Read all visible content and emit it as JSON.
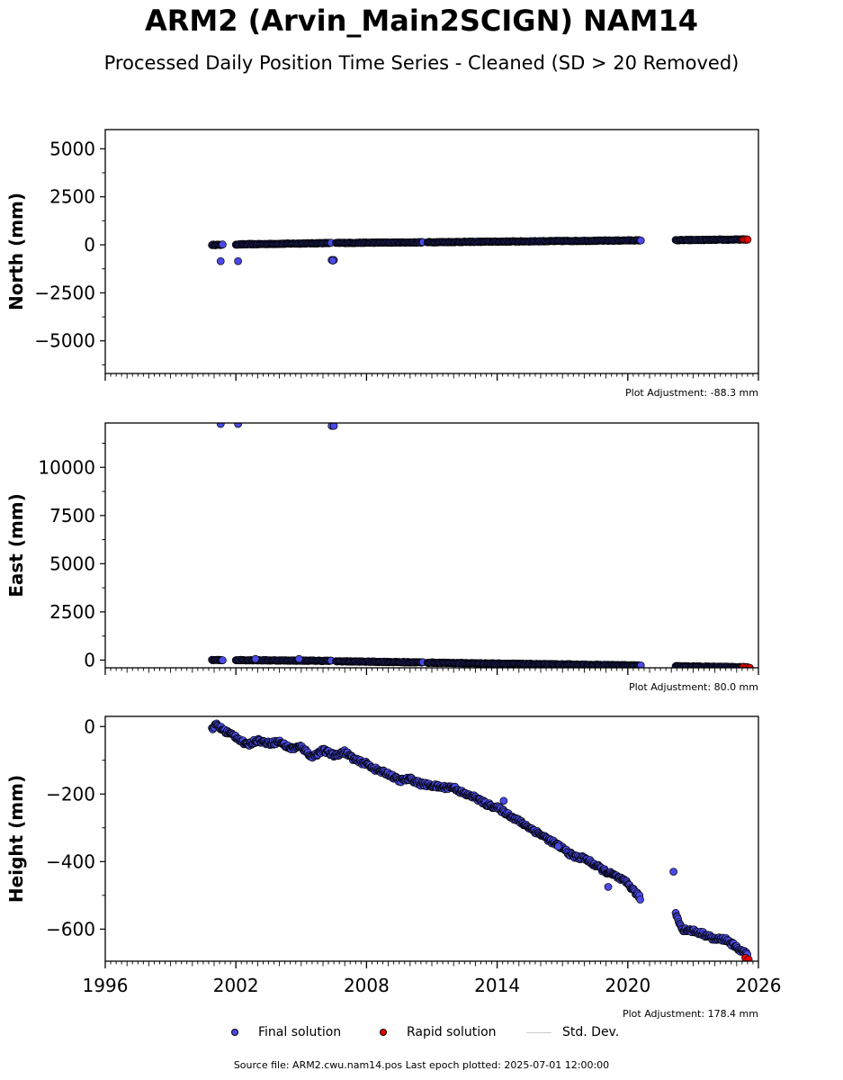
{
  "page": {
    "title": "ARM2 (Arvin_Main2SCIGN) NAM14",
    "subtitle": "Processed Daily Position Time Series - Cleaned (SD > 20 Removed)",
    "source_label": "Source file: ARM2.cwu.nam14.pos  Last epoch plotted: 2025-07-01 12:00:00"
  },
  "legend": {
    "final": "Final solution",
    "rapid": "Rapid solution",
    "std": "Std. Dev."
  },
  "colors": {
    "final": "#4a4ae6",
    "rapid": "#e60000",
    "std": "#cccccc",
    "edge": "#000000"
  },
  "chart_data": [
    {
      "type": "scatter",
      "ylabel": "North (mm)",
      "adjustment": "Plot Adjustment: -88.3 mm",
      "xlim": [
        1996,
        2026
      ],
      "ylim": [
        -6700,
        6000
      ],
      "yticks": [
        5000,
        2500,
        0,
        -2500,
        -5000
      ],
      "ytick_labels": [
        "5000",
        "2500",
        "0",
        "−2500",
        "−5000"
      ],
      "x_tick_labels_shown": false,
      "series": [
        {
          "kind": "final",
          "segments": [
            {
              "x": [
                2000.9,
                2001.4
              ],
              "y": [
                0,
                0
              ]
            },
            {
              "x": [
                2002.0,
                2006.4
              ],
              "y": [
                20,
                95
              ]
            },
            {
              "x": [
                2006.6,
                2010.6
              ],
              "y": [
                100,
                130
              ]
            },
            {
              "x": [
                2010.8,
                2020.6
              ],
              "y": [
                135,
                235
              ]
            },
            {
              "x": [
                2022.2,
                2025.5
              ],
              "y": [
                240,
                280
              ]
            }
          ],
          "outliers": [
            {
              "x": 2001.3,
              "y": -850
            },
            {
              "x": 2002.1,
              "y": -850
            },
            {
              "x": 2006.4,
              "y": -790
            },
            {
              "x": 2006.5,
              "y": -790
            },
            {
              "x": 2006.45,
              "y": -820
            }
          ]
        },
        {
          "kind": "rapid",
          "points": [
            {
              "x": 2025.3,
              "y": 270
            },
            {
              "x": 2025.4,
              "y": 270
            },
            {
              "x": 2025.5,
              "y": 275
            }
          ]
        }
      ]
    },
    {
      "type": "scatter",
      "ylabel": "East (mm)",
      "adjustment": "Plot Adjustment: 80.0 mm",
      "xlim": [
        1996,
        2026
      ],
      "ylim": [
        -400,
        12300
      ],
      "yticks": [
        10000,
        7500,
        5000,
        2500,
        0
      ],
      "ytick_labels": [
        "10000",
        "7500",
        "5000",
        "2500",
        "0"
      ],
      "x_tick_labels_shown": false,
      "series": [
        {
          "kind": "final",
          "segments": [
            {
              "x": [
                2000.9,
                2001.4
              ],
              "y": [
                0,
                0
              ]
            },
            {
              "x": [
                2002.0,
                2006.4
              ],
              "y": [
                0,
                -40
              ]
            },
            {
              "x": [
                2006.6,
                2010.6
              ],
              "y": [
                -60,
                -120
              ]
            },
            {
              "x": [
                2010.8,
                2020.6
              ],
              "y": [
                -130,
                -280
              ]
            },
            {
              "x": [
                2022.2,
                2025.5
              ],
              "y": [
                -320,
                -370
              ]
            }
          ],
          "outliers": [
            {
              "x": 2001.3,
              "y": 12250
            },
            {
              "x": 2002.1,
              "y": 12250
            },
            {
              "x": 2006.4,
              "y": 12150
            },
            {
              "x": 2006.5,
              "y": 12150
            },
            {
              "x": 2002.9,
              "y": 60
            },
            {
              "x": 2004.9,
              "y": 60
            }
          ]
        },
        {
          "kind": "rapid",
          "points": [
            {
              "x": 2025.3,
              "y": -360
            },
            {
              "x": 2025.45,
              "y": -380
            },
            {
              "x": 2025.6,
              "y": -400
            }
          ]
        }
      ]
    },
    {
      "type": "scatter",
      "ylabel": "Height (mm)",
      "adjustment": "Plot Adjustment: 178.4 mm",
      "xlim": [
        1996,
        2026
      ],
      "ylim": [
        -695,
        30
      ],
      "yticks": [
        0,
        -200,
        -400,
        -600
      ],
      "ytick_labels": [
        "0",
        "−200",
        "−400",
        "−600"
      ],
      "xticks": [
        1996,
        2002,
        2008,
        2014,
        2020,
        2026
      ],
      "xtick_labels": [
        "1996",
        "2002",
        "2008",
        "2014",
        "2020",
        "2026"
      ],
      "x_tick_labels_shown": true,
      "series": [
        {
          "kind": "final",
          "segments": [
            {
              "x": [
                2000.9,
                2001.1,
                2001.4,
                2002.0,
                2002.5,
                2003.0,
                2003.5,
                2004.0,
                2004.5,
                2005.0,
                2005.5,
                2006.0,
                2006.5,
                2007.0,
                2007.5,
                2008.0,
                2008.5,
                2009.0,
                2009.5,
                2010.0,
                2010.5,
                2011.0,
                2011.5,
                2012.0,
                2012.5,
                2013.0,
                2013.5,
                2014.0,
                2014.5,
                2015.0,
                2015.5,
                2016.0,
                2016.5,
                2017.0,
                2017.5,
                2018.0,
                2018.5,
                2019.0,
                2019.5,
                2020.0,
                2020.6
              ],
              "y": [
                -5,
                5,
                -10,
                -30,
                -55,
                -40,
                -50,
                -45,
                -65,
                -60,
                -90,
                -70,
                -85,
                -75,
                -100,
                -110,
                -130,
                -140,
                -160,
                -155,
                -170,
                -175,
                -180,
                -180,
                -200,
                -210,
                -230,
                -240,
                -260,
                -280,
                -300,
                -320,
                -340,
                -360,
                -385,
                -390,
                -410,
                -430,
                -445,
                -465,
                -510
              ]
            },
            {
              "x": [
                2022.2,
                2022.5,
                2023.0,
                2023.5,
                2024.0,
                2024.5,
                2025.0,
                2025.5
              ],
              "y": [
                -555,
                -600,
                -605,
                -615,
                -630,
                -630,
                -655,
                -675
              ]
            }
          ],
          "outliers": [
            {
              "x": 2022.1,
              "y": -430
            },
            {
              "x": 2019.1,
              "y": -475
            },
            {
              "x": 2016.8,
              "y": -355
            },
            {
              "x": 2014.3,
              "y": -220
            }
          ]
        },
        {
          "kind": "rapid",
          "points": [
            {
              "x": 2025.4,
              "y": -685
            },
            {
              "x": 2025.55,
              "y": -690
            }
          ]
        }
      ]
    }
  ]
}
